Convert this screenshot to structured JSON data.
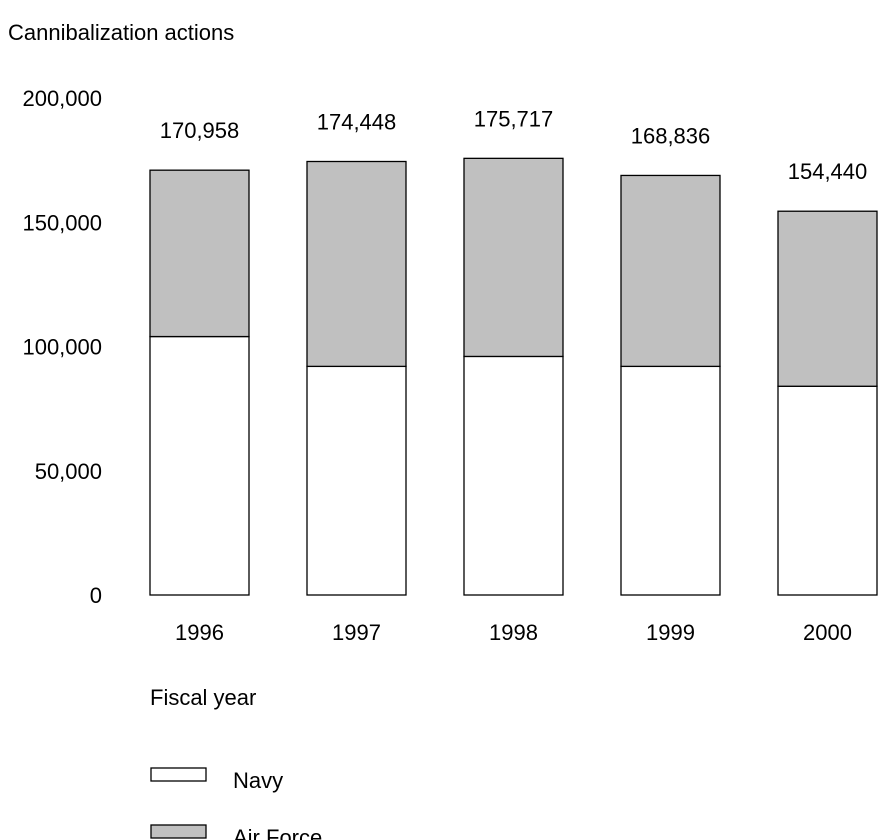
{
  "chart_data": {
    "type": "bar",
    "stacked": true,
    "ylabel": "Cannibalization actions",
    "xlabel": "Fiscal year",
    "categories": [
      "1996",
      "1997",
      "1998",
      "1999",
      "2000"
    ],
    "series": [
      {
        "name": "Navy",
        "color": "#ffffff",
        "values": [
          104000,
          92000,
          96000,
          92000,
          84000
        ]
      },
      {
        "name": "Air Force",
        "color": "#c0c0c0",
        "values": [
          66958,
          82448,
          79717,
          76836,
          70440
        ]
      }
    ],
    "totals": [
      170958,
      174448,
      175717,
      168836,
      154440
    ],
    "total_labels": [
      "170,958",
      "174,448",
      "175,717",
      "168,836",
      "154,440"
    ],
    "ylim": [
      0,
      200000
    ],
    "yticks": [
      0,
      50000,
      100000,
      150000,
      200000
    ],
    "ytick_labels": [
      "0",
      "50,000",
      "100,000",
      "150,000",
      "200,000"
    ],
    "grid": false,
    "legend_position": "bottom-left"
  }
}
